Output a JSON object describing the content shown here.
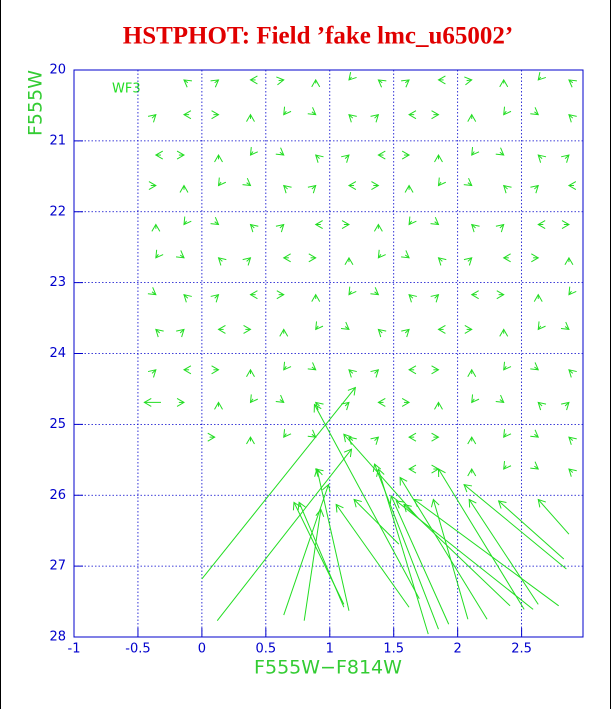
{
  "chart_data": {
    "type": "vector",
    "title": "HSTPHOT: Field ’fake lmc_u65002’",
    "annotation": "WF3",
    "x_label": "F555W−F814W",
    "y_label": "F555W",
    "xlim": [
      -1,
      2.98
    ],
    "ylim": [
      20,
      28
    ],
    "y_inverted": true,
    "xticks": [
      -1,
      -0.5,
      0,
      0.5,
      1,
      1.5,
      2,
      2.5
    ],
    "yticks": [
      20,
      21,
      22,
      23,
      24,
      25,
      26,
      27,
      28
    ],
    "grid": true,
    "color": "#22dd22",
    "axis_color": "#0000cc",
    "title_color": "#e00000",
    "label_color": "#33cc33",
    "arrows": [
      [
        -0.11,
        20.18,
        -0.14,
        20.14
      ],
      [
        0.1,
        20.18,
        0.13,
        20.14
      ],
      [
        0.42,
        20.14,
        0.38,
        20.14
      ],
      [
        0.6,
        20.15,
        0.64,
        20.14
      ],
      [
        0.89,
        20.19,
        0.89,
        20.14
      ],
      [
        1.17,
        20.1,
        1.15,
        20.14
      ],
      [
        1.41,
        20.18,
        1.38,
        20.14
      ],
      [
        1.59,
        20.18,
        1.62,
        20.14
      ],
      [
        1.89,
        20.14,
        1.85,
        20.14
      ],
      [
        2.07,
        20.15,
        2.11,
        20.14
      ],
      [
        2.36,
        20.19,
        2.36,
        20.14
      ],
      [
        2.65,
        20.1,
        2.63,
        20.14
      ],
      [
        2.9,
        20.18,
        2.87,
        20.14
      ],
      [
        -0.39,
        20.68,
        -0.36,
        20.63
      ],
      [
        -0.1,
        20.63,
        -0.14,
        20.63
      ],
      [
        0.09,
        20.63,
        0.13,
        20.63
      ],
      [
        0.38,
        20.69,
        0.38,
        20.63
      ],
      [
        0.66,
        20.58,
        0.64,
        20.63
      ],
      [
        0.86,
        20.59,
        0.89,
        20.63
      ],
      [
        1.18,
        20.68,
        1.15,
        20.63
      ],
      [
        1.35,
        20.68,
        1.38,
        20.63
      ],
      [
        1.66,
        20.63,
        1.62,
        20.63
      ],
      [
        1.81,
        20.63,
        1.85,
        20.63
      ],
      [
        2.11,
        20.69,
        2.11,
        20.63
      ],
      [
        2.38,
        20.58,
        2.36,
        20.63
      ],
      [
        2.6,
        20.59,
        2.63,
        20.63
      ],
      [
        2.9,
        20.68,
        2.87,
        20.63
      ],
      [
        -0.32,
        21.2,
        -0.36,
        21.2
      ],
      [
        -0.18,
        21.2,
        -0.14,
        21.2
      ],
      [
        0.13,
        21.26,
        0.13,
        21.2
      ],
      [
        0.4,
        21.15,
        0.38,
        21.2
      ],
      [
        0.61,
        21.16,
        0.64,
        21.2
      ],
      [
        0.92,
        21.25,
        0.89,
        21.2
      ],
      [
        1.12,
        21.25,
        1.15,
        21.2
      ],
      [
        1.42,
        21.2,
        1.38,
        21.2
      ],
      [
        1.58,
        21.2,
        1.62,
        21.2
      ],
      [
        1.85,
        21.26,
        1.85,
        21.2
      ],
      [
        2.13,
        21.15,
        2.11,
        21.2
      ],
      [
        2.33,
        21.16,
        2.36,
        21.2
      ],
      [
        2.66,
        21.25,
        2.63,
        21.2
      ],
      [
        2.84,
        21.25,
        2.87,
        21.2
      ],
      [
        -0.4,
        21.63,
        -0.36,
        21.63
      ],
      [
        -0.14,
        21.69,
        -0.14,
        21.63
      ],
      [
        0.15,
        21.58,
        0.13,
        21.63
      ],
      [
        0.35,
        21.59,
        0.38,
        21.63
      ],
      [
        0.67,
        21.68,
        0.64,
        21.63
      ],
      [
        0.86,
        21.68,
        0.89,
        21.63
      ],
      [
        1.19,
        21.63,
        1.15,
        21.63
      ],
      [
        1.34,
        21.63,
        1.38,
        21.63
      ],
      [
        1.62,
        21.69,
        1.62,
        21.63
      ],
      [
        1.87,
        21.58,
        1.85,
        21.63
      ],
      [
        2.08,
        21.59,
        2.11,
        21.63
      ],
      [
        2.39,
        21.68,
        2.36,
        21.63
      ],
      [
        2.6,
        21.68,
        2.63,
        21.63
      ],
      [
        2.91,
        21.63,
        2.87,
        21.63
      ],
      [
        -0.36,
        22.24,
        -0.36,
        22.18
      ],
      [
        -0.12,
        22.13,
        -0.14,
        22.18
      ],
      [
        0.1,
        22.14,
        0.13,
        22.18
      ],
      [
        0.41,
        22.23,
        0.38,
        22.18
      ],
      [
        0.61,
        22.23,
        0.64,
        22.18
      ],
      [
        0.93,
        22.18,
        0.89,
        22.18
      ],
      [
        1.11,
        22.18,
        1.15,
        22.18
      ],
      [
        1.38,
        22.24,
        1.38,
        22.18
      ],
      [
        1.64,
        22.13,
        1.62,
        22.18
      ],
      [
        1.82,
        22.14,
        1.85,
        22.18
      ],
      [
        2.14,
        22.23,
        2.11,
        22.18
      ],
      [
        2.33,
        22.23,
        2.36,
        22.18
      ],
      [
        2.67,
        22.18,
        2.63,
        22.18
      ],
      [
        2.83,
        22.18,
        2.87,
        22.18
      ],
      [
        -0.34,
        22.6,
        -0.36,
        22.65
      ],
      [
        -0.17,
        22.61,
        -0.14,
        22.65
      ],
      [
        0.16,
        22.7,
        0.13,
        22.65
      ],
      [
        0.35,
        22.7,
        0.38,
        22.65
      ],
      [
        0.68,
        22.65,
        0.64,
        22.65
      ],
      [
        0.85,
        22.65,
        0.89,
        22.65
      ],
      [
        1.15,
        22.71,
        1.15,
        22.65
      ],
      [
        1.4,
        22.6,
        1.38,
        22.65
      ],
      [
        1.59,
        22.61,
        1.62,
        22.65
      ],
      [
        1.88,
        22.7,
        1.85,
        22.65
      ],
      [
        2.08,
        22.7,
        2.11,
        22.65
      ],
      [
        2.4,
        22.65,
        2.36,
        22.65
      ],
      [
        2.59,
        22.65,
        2.63,
        22.65
      ],
      [
        2.87,
        22.71,
        2.87,
        22.65
      ],
      [
        -0.39,
        23.13,
        -0.36,
        23.17
      ],
      [
        -0.11,
        23.22,
        -0.14,
        23.17
      ],
      [
        0.1,
        23.22,
        0.13,
        23.17
      ],
      [
        0.42,
        23.17,
        0.38,
        23.17
      ],
      [
        0.6,
        23.17,
        0.64,
        23.17
      ],
      [
        0.89,
        23.23,
        0.89,
        23.17
      ],
      [
        1.17,
        23.12,
        1.15,
        23.17
      ],
      [
        1.35,
        23.13,
        1.38,
        23.17
      ],
      [
        1.65,
        23.22,
        1.62,
        23.17
      ],
      [
        1.82,
        23.22,
        1.85,
        23.17
      ],
      [
        2.15,
        23.17,
        2.11,
        23.17
      ],
      [
        2.32,
        23.17,
        2.36,
        23.17
      ],
      [
        2.63,
        23.23,
        2.63,
        23.17
      ],
      [
        2.89,
        23.12,
        2.87,
        23.17
      ],
      [
        -0.33,
        23.71,
        -0.36,
        23.66
      ],
      [
        -0.17,
        23.71,
        -0.14,
        23.66
      ],
      [
        0.17,
        23.66,
        0.13,
        23.66
      ],
      [
        0.34,
        23.66,
        0.38,
        23.66
      ],
      [
        0.64,
        23.72,
        0.64,
        23.66
      ],
      [
        0.91,
        23.61,
        0.89,
        23.66
      ],
      [
        1.12,
        23.62,
        1.15,
        23.66
      ],
      [
        1.41,
        23.71,
        1.38,
        23.66
      ],
      [
        1.59,
        23.71,
        1.62,
        23.66
      ],
      [
        1.89,
        23.66,
        1.85,
        23.66
      ],
      [
        2.07,
        23.66,
        2.11,
        23.66
      ],
      [
        2.36,
        23.72,
        2.36,
        23.66
      ],
      [
        2.65,
        23.61,
        2.63,
        23.66
      ],
      [
        2.84,
        23.62,
        2.87,
        23.66
      ],
      [
        -0.39,
        24.28,
        -0.36,
        24.23
      ],
      [
        -0.1,
        24.23,
        -0.14,
        24.23
      ],
      [
        0.09,
        24.23,
        0.13,
        24.23
      ],
      [
        0.38,
        24.29,
        0.38,
        24.23
      ],
      [
        0.66,
        24.18,
        0.64,
        24.23
      ],
      [
        0.86,
        24.19,
        0.89,
        24.23
      ],
      [
        1.18,
        24.28,
        1.15,
        24.23
      ],
      [
        1.35,
        24.28,
        1.38,
        24.23
      ],
      [
        1.66,
        24.23,
        1.62,
        24.23
      ],
      [
        1.81,
        24.23,
        1.85,
        24.23
      ],
      [
        2.11,
        24.29,
        2.11,
        24.23
      ],
      [
        2.38,
        24.18,
        2.36,
        24.23
      ],
      [
        2.6,
        24.19,
        2.63,
        24.23
      ],
      [
        2.9,
        24.28,
        2.87,
        24.23
      ],
      [
        -0.32,
        24.69,
        -0.45,
        24.69
      ],
      [
        -0.18,
        24.69,
        -0.14,
        24.69
      ],
      [
        0.13,
        24.75,
        0.13,
        24.69
      ],
      [
        0.4,
        24.64,
        0.38,
        24.69
      ],
      [
        0.61,
        24.65,
        0.64,
        24.69
      ],
      [
        0.92,
        24.74,
        0.89,
        24.69
      ],
      [
        1.12,
        24.74,
        1.15,
        24.69
      ],
      [
        1.42,
        24.69,
        1.38,
        24.69
      ],
      [
        1.58,
        24.69,
        1.62,
        24.69
      ],
      [
        1.85,
        24.75,
        1.85,
        24.69
      ],
      [
        2.13,
        24.64,
        2.11,
        24.69
      ],
      [
        2.33,
        24.65,
        2.36,
        24.69
      ],
      [
        2.66,
        24.74,
        2.63,
        24.69
      ],
      [
        2.84,
        24.74,
        2.87,
        24.69
      ],
      [
        0.06,
        25.18,
        0.1,
        25.18
      ],
      [
        0.38,
        25.24,
        0.38,
        25.18
      ],
      [
        0.66,
        25.13,
        0.64,
        25.18
      ],
      [
        0.86,
        25.14,
        0.89,
        25.18
      ],
      [
        1.18,
        25.23,
        1.15,
        25.18
      ],
      [
        1.35,
        25.23,
        1.38,
        25.18
      ],
      [
        1.66,
        25.18,
        1.62,
        25.18
      ],
      [
        1.81,
        25.18,
        1.85,
        25.18
      ],
      [
        2.11,
        25.24,
        2.11,
        25.18
      ],
      [
        2.38,
        25.13,
        2.36,
        25.18
      ],
      [
        2.6,
        25.14,
        2.63,
        25.18
      ],
      [
        2.9,
        25.23,
        2.87,
        25.18
      ],
      [
        0.92,
        25.68,
        0.89,
        25.63
      ],
      [
        1.66,
        25.63,
        1.62,
        25.63
      ],
      [
        1.81,
        25.63,
        1.85,
        25.63
      ],
      [
        2.11,
        25.69,
        2.11,
        25.63
      ],
      [
        2.38,
        25.58,
        2.36,
        25.63
      ],
      [
        2.6,
        25.59,
        2.63,
        25.63
      ],
      [
        2.9,
        25.68,
        2.87,
        25.63
      ],
      [
        0.0,
        27.18,
        1.2,
        24.48
      ],
      [
        1.7,
        27.46,
        0.88,
        24.72
      ],
      [
        0.12,
        27.77,
        1.17,
        25.35
      ],
      [
        1.7,
        26.34,
        1.11,
        25.14
      ],
      [
        1.15,
        27.63,
        0.9,
        25.63
      ],
      [
        0.64,
        27.69,
        0.99,
        25.85
      ],
      [
        1.11,
        27.54,
        0.72,
        26.1
      ],
      [
        0.8,
        27.77,
        0.93,
        26.2
      ],
      [
        1.62,
        27.58,
        1.05,
        26.13
      ],
      [
        1.11,
        27.58,
        0.76,
        26.1
      ],
      [
        1.85,
        27.89,
        1.35,
        25.56
      ],
      [
        1.77,
        27.96,
        1.38,
        25.63
      ],
      [
        2.23,
        27.75,
        1.55,
        25.75
      ],
      [
        2.59,
        27.61,
        1.52,
        26.08
      ],
      [
        2.41,
        27.56,
        1.58,
        26.13
      ],
      [
        2.52,
        27.61,
        1.85,
        25.63
      ],
      [
        2.85,
        27.04,
        2.05,
        25.85
      ],
      [
        2.83,
        26.9,
        2.32,
        26.08
      ],
      [
        2.87,
        26.55,
        2.63,
        26.06
      ],
      [
        2.63,
        27.54,
        2.09,
        26.06
      ],
      [
        2.08,
        27.75,
        1.81,
        26.06
      ],
      [
        1.54,
        26.69,
        1.19,
        26.06
      ],
      [
        2.79,
        27.56,
        1.66,
        26.06
      ],
      [
        1.93,
        27.82,
        1.48,
        26.01
      ]
    ]
  }
}
